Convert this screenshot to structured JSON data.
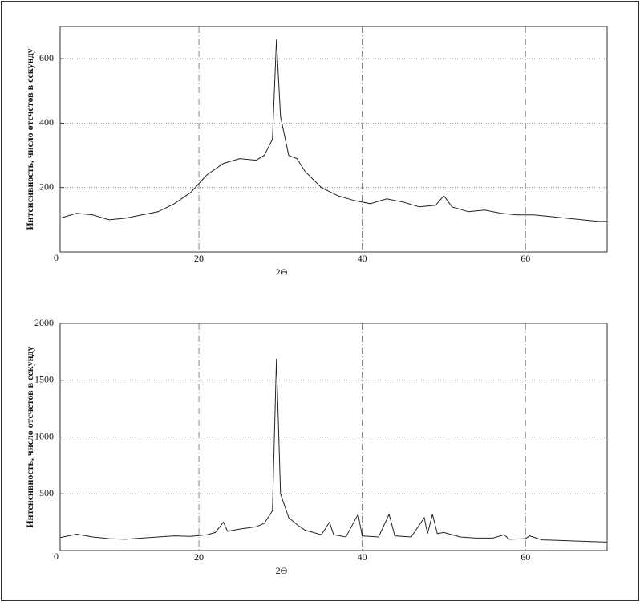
{
  "chart_data": [
    {
      "type": "line",
      "x_label": "2Θ",
      "y_label": "Интенсивность, число отсчетов в секунду",
      "xlim": [
        3,
        70
      ],
      "ylim": [
        0,
        700
      ],
      "xticks": [
        20,
        40,
        60
      ],
      "yticks": [
        0,
        200,
        400,
        600
      ],
      "grid": true,
      "series": [
        {
          "color": "#222222",
          "x": [
            3,
            5,
            7,
            9,
            11,
            13,
            15,
            17,
            19,
            21,
            23,
            25,
            27,
            28,
            29,
            29.5,
            30,
            31,
            32,
            33,
            35,
            37,
            39,
            41,
            43,
            45,
            47,
            49,
            50,
            51,
            53,
            55,
            57,
            59,
            61,
            63,
            65,
            67,
            69,
            70
          ],
          "values": [
            105,
            120,
            115,
            100,
            105,
            115,
            125,
            150,
            185,
            240,
            275,
            290,
            285,
            300,
            350,
            660,
            420,
            300,
            290,
            250,
            200,
            175,
            160,
            150,
            165,
            155,
            140,
            145,
            175,
            140,
            125,
            130,
            120,
            115,
            115,
            110,
            105,
            100,
            95,
            95
          ]
        }
      ]
    },
    {
      "type": "line",
      "x_label": "2Θ",
      "y_label": "Интенсивность, число отсчетов в секунду",
      "xlim": [
        3,
        70
      ],
      "ylim": [
        0,
        2000
      ],
      "xticks": [
        20,
        40,
        60
      ],
      "yticks": [
        0,
        500,
        1000,
        1500,
        2000
      ],
      "grid": true,
      "series": [
        {
          "color": "#222222",
          "x": [
            3,
            5,
            7,
            9,
            11,
            13,
            15,
            17,
            19,
            21,
            22,
            23,
            23.5,
            25,
            27,
            28,
            29,
            29.5,
            30,
            31,
            32,
            33,
            35,
            36,
            36.5,
            38,
            39.5,
            40,
            42,
            43.3,
            44,
            46,
            47.6,
            48,
            48.6,
            49.2,
            50,
            52,
            54,
            56,
            57.4,
            58,
            60,
            60.5,
            62,
            64,
            66,
            68,
            70
          ],
          "values": [
            115,
            145,
            120,
            105,
            100,
            110,
            120,
            130,
            125,
            140,
            160,
            250,
            170,
            190,
            210,
            240,
            350,
            1690,
            500,
            290,
            230,
            180,
            140,
            250,
            140,
            120,
            320,
            130,
            120,
            320,
            130,
            120,
            290,
            150,
            320,
            150,
            160,
            120,
            110,
            110,
            140,
            100,
            105,
            130,
            95,
            90,
            85,
            80,
            75
          ]
        }
      ]
    }
  ]
}
